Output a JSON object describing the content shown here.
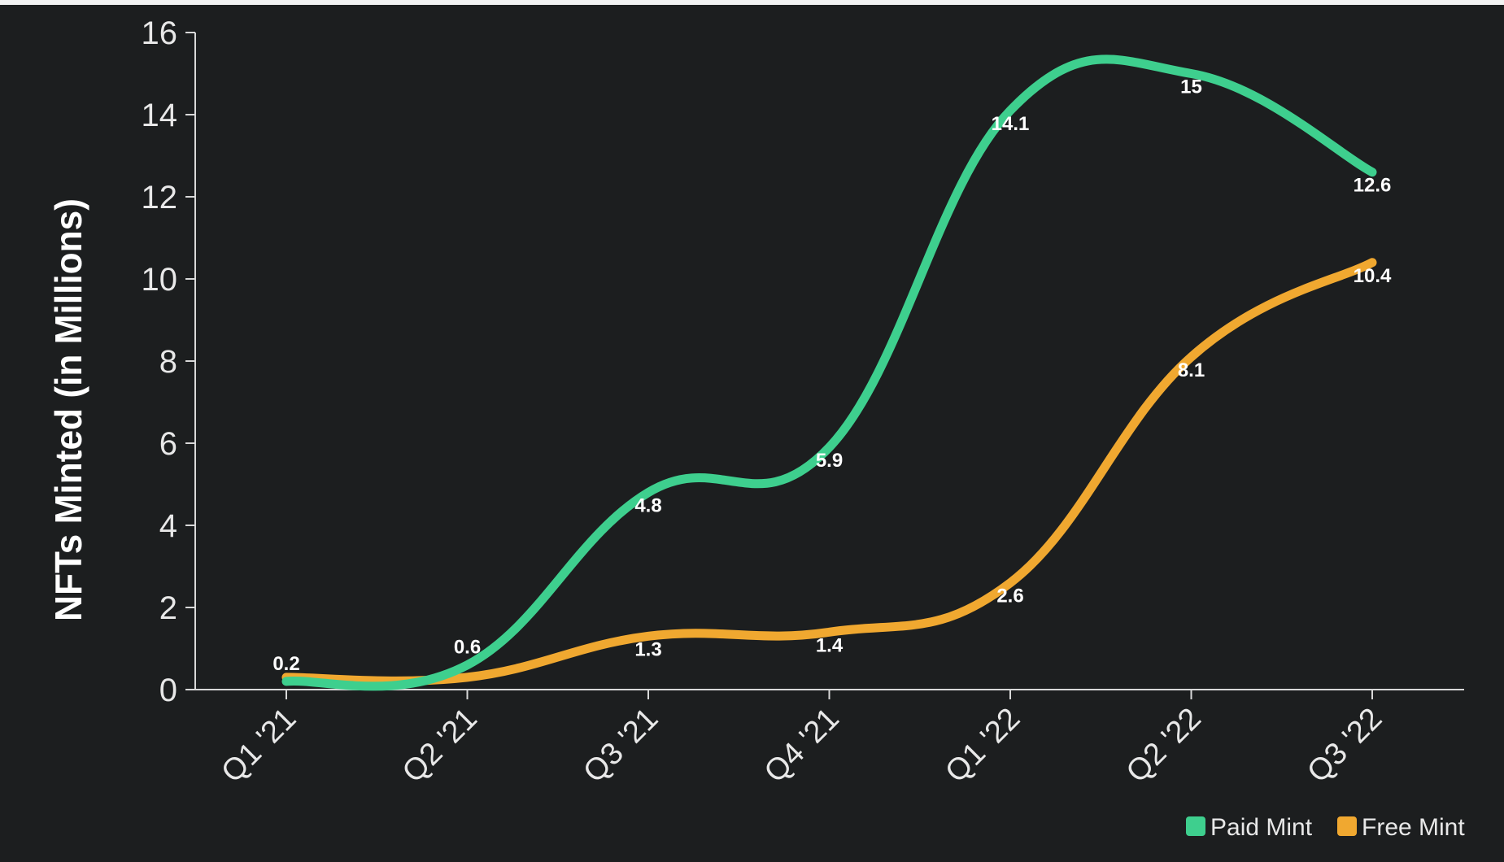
{
  "chart_data": {
    "type": "line",
    "title": "",
    "xlabel": "",
    "ylabel": "NFTs Minted (in Millions)",
    "categories": [
      "Q1 '21",
      "Q2 '21",
      "Q3 '21",
      "Q4 '21",
      "Q1 '22",
      "Q2 '22",
      "Q3 '22"
    ],
    "ylim": [
      0,
      16
    ],
    "yticks": [
      0,
      2,
      4,
      6,
      8,
      10,
      12,
      14,
      16
    ],
    "grid": false,
    "legend_position": "bottom-right",
    "series": [
      {
        "name": "Paid Mint",
        "color": "#3ecf8e",
        "values": [
          0.2,
          0.6,
          4.8,
          5.9,
          14.1,
          15,
          12.6
        ],
        "labels": [
          "0.2",
          "0.6",
          "4.8",
          "5.9",
          "14.1",
          "15",
          "12.6"
        ]
      },
      {
        "name": "Free Mint",
        "color": "#f0a830",
        "values": [
          0.3,
          0.3,
          1.3,
          1.4,
          2.6,
          8.1,
          10.4
        ],
        "labels": [
          "",
          "",
          "1.3",
          "1.4",
          "2.6",
          "8.1",
          "10.4"
        ]
      }
    ]
  }
}
